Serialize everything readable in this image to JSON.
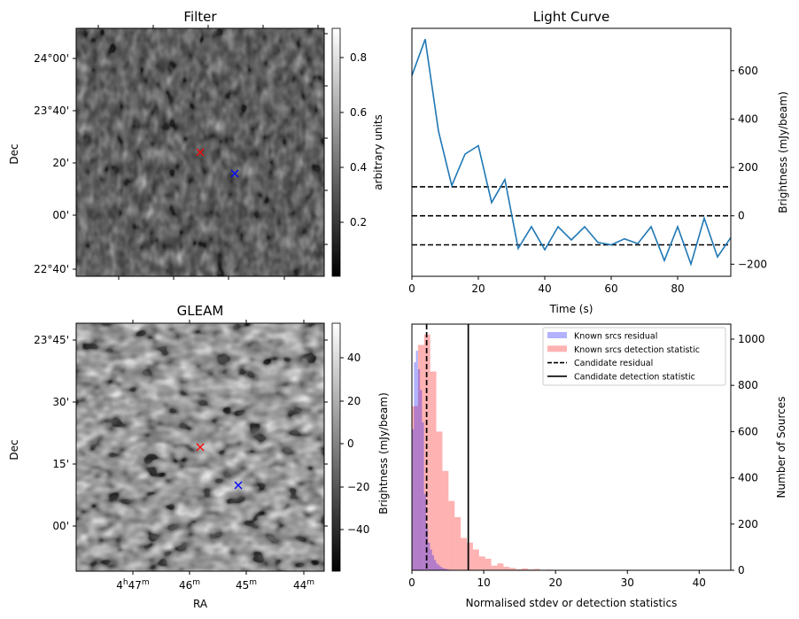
{
  "chart_data": [
    {
      "type": "heatmap",
      "title": "Filter",
      "ylabel": "Dec",
      "ytick_labels": [
        "24°00'",
        "23°40'",
        "20'",
        "00'",
        "22°40'"
      ],
      "colorbar": {
        "label": "arbitrary units",
        "ticks": [
          "0.2",
          "0.4",
          "0.6",
          "0.8"
        ],
        "range": [
          0.02,
          0.9
        ],
        "cmap": "gray"
      },
      "markers": [
        {
          "name": "candidate",
          "symbol": "x",
          "color": "#ff0000",
          "rel": [
            0.5,
            0.5
          ]
        },
        {
          "name": "known-source",
          "symbol": "x",
          "color": "#0000ff",
          "rel": [
            0.64,
            0.585
          ]
        }
      ]
    },
    {
      "type": "line",
      "title": "Light Curve",
      "xlabel": "Time (s)",
      "ylabel": "Brightness (mJy/beam)",
      "xlim": [
        0,
        96
      ],
      "ylim": [
        -250,
        775
      ],
      "xticks": [
        0,
        20,
        40,
        60,
        80
      ],
      "yticks": [
        -200,
        0,
        200,
        400,
        600
      ],
      "ytick_labels": [
        "−200",
        "0",
        "200",
        "400",
        "600"
      ],
      "x": [
        0,
        4,
        8,
        12,
        16,
        20,
        24,
        28,
        32,
        36,
        40,
        44,
        48,
        52,
        56,
        60,
        64,
        68,
        72,
        76,
        80,
        84,
        88,
        92,
        96
      ],
      "series": [
        {
          "name": "light-curve",
          "color": "#1f77b4",
          "values": [
            580,
            730,
            350,
            125,
            255,
            290,
            55,
            150,
            -135,
            -45,
            -140,
            -45,
            -100,
            -45,
            -110,
            -120,
            -95,
            -115,
            -45,
            -185,
            -45,
            -200,
            -10,
            -170,
            -90
          ]
        }
      ],
      "hlines": [
        {
          "y": 120,
          "style": "dashed",
          "color": "#000000"
        },
        {
          "y": 0,
          "style": "dashed",
          "color": "#000000"
        },
        {
          "y": -120,
          "style": "dashed",
          "color": "#000000"
        }
      ]
    },
    {
      "type": "heatmap",
      "title": "GLEAM",
      "xlabel": "RA",
      "ylabel": "Dec",
      "xtick_labels": [
        "4h47m",
        "46m",
        "45m",
        "44m"
      ],
      "ytick_labels": [
        "23°45'",
        "30'",
        "15'",
        "00'"
      ],
      "colorbar": {
        "label": "Brightness (mJy/beam)",
        "ticks": [
          "40",
          "20",
          "0",
          "−20",
          "−40"
        ],
        "range": [
          -58,
          55
        ],
        "cmap": "gray"
      },
      "markers": [
        {
          "name": "candidate",
          "symbol": "x",
          "color": "#ff0000",
          "rel": [
            0.5,
            0.5
          ]
        },
        {
          "name": "known-source",
          "symbol": "x",
          "color": "#0000ff",
          "rel": [
            0.65,
            0.65
          ]
        }
      ]
    },
    {
      "type": "bar",
      "title": "",
      "xlabel": "Normalised stdev or detection statistics",
      "ylabel_left": "Brightness (mJy/beam)",
      "ylabel": "Number of Sources",
      "xlim": [
        0,
        44.4
      ],
      "ylim": [
        0,
        1065
      ],
      "xticks": [
        0,
        10,
        20,
        30,
        40
      ],
      "yticks": [
        0,
        200,
        400,
        600,
        800,
        1000
      ],
      "legend": {
        "position": "top-right",
        "entries": [
          {
            "label": "Known srcs residual",
            "kind": "patch",
            "color": "#0000ff",
            "alpha": 0.3
          },
          {
            "label": "Known srcs detection statistic",
            "kind": "patch",
            "color": "#ff0000",
            "alpha": 0.3
          },
          {
            "label": "Candidate residual",
            "kind": "dashed-line",
            "color": "#000000"
          },
          {
            "label": "Candidate detection statistic",
            "kind": "solid-line",
            "color": "#000000"
          }
        ]
      },
      "series": [
        {
          "name": "Known srcs residual",
          "color": "#0000ff",
          "alpha": 0.3,
          "bin_width": 0.28,
          "start": 0.0,
          "values": [
            610,
            900,
            950,
            870,
            780,
            640,
            330,
            180,
            120,
            90,
            65,
            45,
            30,
            22,
            15,
            10,
            7,
            5,
            3,
            2,
            1,
            1
          ]
        },
        {
          "name": "Known srcs detection statistic",
          "color": "#ff0000",
          "alpha": 0.3,
          "bin_width": 0.85,
          "start": 0.0,
          "values": [
            710,
            975,
            1020,
            860,
            600,
            430,
            300,
            230,
            140,
            120,
            90,
            60,
            50,
            20,
            30,
            15,
            10,
            5,
            8,
            4,
            6,
            2,
            3,
            1,
            2,
            1,
            1,
            1,
            1,
            2,
            1,
            1,
            1,
            1,
            1,
            1,
            2,
            1,
            1,
            1,
            1,
            1,
            1,
            0,
            0,
            0,
            0,
            0,
            1
          ]
        }
      ],
      "vlines": [
        {
          "x": 2.05,
          "style": "dashed",
          "color": "#000000",
          "label": "Candidate residual"
        },
        {
          "x": 7.85,
          "style": "solid",
          "color": "#000000",
          "label": "Candidate detection statistic"
        }
      ]
    }
  ]
}
